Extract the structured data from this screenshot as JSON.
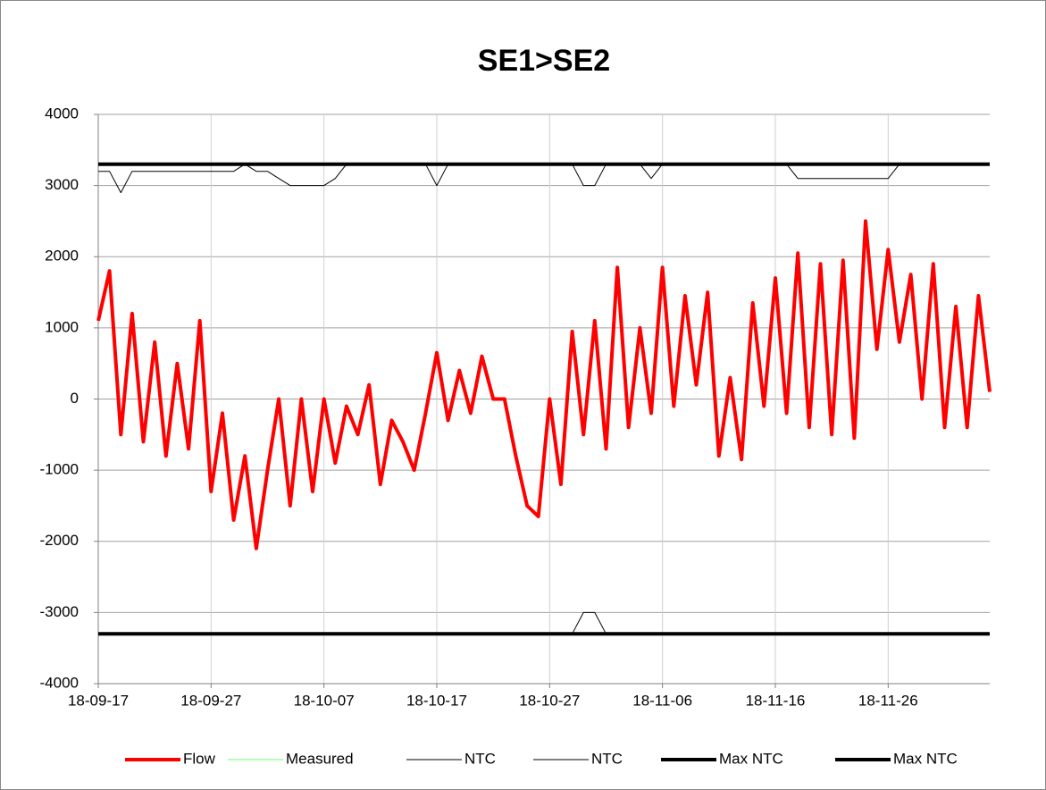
{
  "chart_data": {
    "type": "line",
    "title": "SE1>SE2",
    "x": [
      "18-09-17",
      "18-09-18",
      "18-09-19",
      "18-09-20",
      "18-09-21",
      "18-09-22",
      "18-09-23",
      "18-09-24",
      "18-09-25",
      "18-09-26",
      "18-09-27",
      "18-09-28",
      "18-09-29",
      "18-09-30",
      "18-10-01",
      "18-10-02",
      "18-10-03",
      "18-10-04",
      "18-10-05",
      "18-10-06",
      "18-10-07",
      "18-10-08",
      "18-10-09",
      "18-10-10",
      "18-10-11",
      "18-10-12",
      "18-10-13",
      "18-10-14",
      "18-10-15",
      "18-10-16",
      "18-10-17",
      "18-10-18",
      "18-10-19",
      "18-10-20",
      "18-10-21",
      "18-10-22",
      "18-10-23",
      "18-10-24",
      "18-10-25",
      "18-10-26",
      "18-10-27",
      "18-10-28",
      "18-10-29",
      "18-10-30",
      "18-10-31",
      "18-11-01",
      "18-11-02",
      "18-11-03",
      "18-11-04",
      "18-11-05",
      "18-11-06",
      "18-11-07",
      "18-11-08",
      "18-11-09",
      "18-11-10",
      "18-11-11",
      "18-11-12",
      "18-11-13",
      "18-11-14",
      "18-11-15",
      "18-11-16",
      "18-11-17",
      "18-11-18",
      "18-11-19",
      "18-11-20",
      "18-11-21",
      "18-11-22",
      "18-11-23",
      "18-11-24",
      "18-11-25",
      "18-11-26",
      "18-11-27",
      "18-11-28",
      "18-11-29",
      "18-11-30",
      "18-12-01",
      "18-12-02",
      "18-12-03",
      "18-12-04",
      "18-12-05"
    ],
    "series": [
      {
        "name": "Flow",
        "color": "#ff0000",
        "line_width": 4,
        "values": [
          1100,
          1800,
          -500,
          1200,
          -600,
          800,
          -800,
          500,
          -700,
          1100,
          -1300,
          -200,
          -1700,
          -800,
          -2100,
          -1000,
          0,
          -1500,
          0,
          -1300,
          0,
          -900,
          -100,
          -500,
          200,
          -1200,
          -300,
          -600,
          -1000,
          -200,
          650,
          -300,
          400,
          -200,
          600,
          0,
          0,
          -800,
          -1500,
          -1650,
          0,
          -1200,
          950,
          -500,
          1100,
          -700,
          1850,
          -400,
          1000,
          -200,
          1850,
          -100,
          1450,
          200,
          1500,
          -800,
          300,
          -850,
          1350,
          -100,
          1700,
          -200,
          2050,
          -400,
          1900,
          -500,
          1950,
          -550,
          2500,
          700,
          2100,
          800,
          1750,
          0,
          1900,
          -400,
          1300,
          -400,
          1450,
          100
        ]
      },
      {
        "name": "Measured",
        "color": "#66ff66",
        "line_width": 1,
        "values": [
          null,
          null,
          null,
          null,
          null,
          null,
          null,
          null,
          null,
          null,
          null,
          null,
          null,
          null,
          null,
          null,
          null,
          null,
          null,
          null,
          null,
          null,
          null,
          null,
          null,
          null,
          null,
          null,
          null,
          null,
          null,
          null,
          null,
          null,
          null,
          null,
          null,
          null,
          null,
          null,
          null,
          null,
          null,
          null,
          null,
          null,
          null,
          null,
          null,
          null,
          null,
          null,
          null,
          null,
          null,
          null,
          null,
          null,
          null,
          null,
          null,
          null,
          null,
          null,
          null,
          null,
          null,
          null,
          null,
          null,
          null,
          null,
          null,
          null,
          null,
          null,
          null,
          null,
          null,
          null
        ]
      },
      {
        "name": "NTC",
        "color": "#000000",
        "line_width": 1,
        "values": [
          3200,
          3200,
          2900,
          3200,
          3200,
          3200,
          3200,
          3200,
          3200,
          3200,
          3200,
          3200,
          3200,
          3300,
          3200,
          3200,
          3100,
          3000,
          3000,
          3000,
          3000,
          3100,
          3300,
          3300,
          3300,
          3300,
          3300,
          3300,
          3300,
          3300,
          3000,
          3300,
          3300,
          3300,
          3300,
          3300,
          3300,
          3300,
          3300,
          3300,
          3300,
          3300,
          3300,
          3000,
          3000,
          3300,
          3300,
          3300,
          3300,
          3100,
          3300,
          3300,
          3300,
          3300,
          3300,
          3300,
          3300,
          3300,
          3300,
          3300,
          3300,
          3300,
          3100,
          3100,
          3100,
          3100,
          3100,
          3100,
          3100,
          3100,
          3100,
          3300,
          3300,
          3300,
          3300,
          3300,
          3300,
          3300,
          3300,
          3300
        ]
      },
      {
        "name": "NTC",
        "color": "#000000",
        "line_width": 1,
        "values": [
          -3300,
          -3300,
          -3300,
          -3300,
          -3300,
          -3300,
          -3300,
          -3300,
          -3300,
          -3300,
          -3300,
          -3300,
          -3300,
          -3300,
          -3300,
          -3300,
          -3300,
          -3300,
          -3300,
          -3300,
          -3300,
          -3300,
          -3300,
          -3300,
          -3300,
          -3300,
          -3300,
          -3300,
          -3300,
          -3300,
          -3300,
          -3300,
          -3300,
          -3300,
          -3300,
          -3300,
          -3300,
          -3300,
          -3300,
          -3300,
          -3300,
          -3300,
          -3300,
          -3000,
          -3000,
          -3300,
          -3300,
          -3300,
          -3300,
          -3300,
          -3300,
          -3300,
          -3300,
          -3300,
          -3300,
          -3300,
          -3300,
          -3300,
          -3300,
          -3300,
          -3300,
          -3300,
          -3300,
          -3300,
          -3300,
          -3300,
          -3300,
          -3300,
          -3300,
          -3300,
          -3300,
          -3300,
          -3300,
          -3300,
          -3300,
          -3300,
          -3300,
          -3300,
          -3300,
          -3300
        ]
      },
      {
        "name": "Max NTC",
        "color": "#000000",
        "line_width": 4,
        "values": [
          3300,
          3300,
          3300,
          3300,
          3300,
          3300,
          3300,
          3300,
          3300,
          3300,
          3300,
          3300,
          3300,
          3300,
          3300,
          3300,
          3300,
          3300,
          3300,
          3300,
          3300,
          3300,
          3300,
          3300,
          3300,
          3300,
          3300,
          3300,
          3300,
          3300,
          3300,
          3300,
          3300,
          3300,
          3300,
          3300,
          3300,
          3300,
          3300,
          3300,
          3300,
          3300,
          3300,
          3300,
          3300,
          3300,
          3300,
          3300,
          3300,
          3300,
          3300,
          3300,
          3300,
          3300,
          3300,
          3300,
          3300,
          3300,
          3300,
          3300,
          3300,
          3300,
          3300,
          3300,
          3300,
          3300,
          3300,
          3300,
          3300,
          3300,
          3300,
          3300,
          3300,
          3300,
          3300,
          3300,
          3300,
          3300,
          3300,
          3300
        ]
      },
      {
        "name": "Max NTC",
        "color": "#000000",
        "line_width": 4,
        "values": [
          -3300,
          -3300,
          -3300,
          -3300,
          -3300,
          -3300,
          -3300,
          -3300,
          -3300,
          -3300,
          -3300,
          -3300,
          -3300,
          -3300,
          -3300,
          -3300,
          -3300,
          -3300,
          -3300,
          -3300,
          -3300,
          -3300,
          -3300,
          -3300,
          -3300,
          -3300,
          -3300,
          -3300,
          -3300,
          -3300,
          -3300,
          -3300,
          -3300,
          -3300,
          -3300,
          -3300,
          -3300,
          -3300,
          -3300,
          -3300,
          -3300,
          -3300,
          -3300,
          -3300,
          -3300,
          -3300,
          -3300,
          -3300,
          -3300,
          -3300,
          -3300,
          -3300,
          -3300,
          -3300,
          -3300,
          -3300,
          -3300,
          -3300,
          -3300,
          -3300,
          -3300,
          -3300,
          -3300,
          -3300,
          -3300,
          -3300,
          -3300,
          -3300,
          -3300,
          -3300,
          -3300,
          -3300,
          -3300,
          -3300,
          -3300,
          -3300,
          -3300,
          -3300,
          -3300,
          -3300
        ]
      }
    ],
    "xlim": [
      "18-09-17",
      "18-12-05"
    ],
    "xticks": [
      "18-09-17",
      "18-09-27",
      "18-10-07",
      "18-10-17",
      "18-10-27",
      "18-11-06",
      "18-11-16",
      "18-11-26"
    ],
    "ylim": [
      -4000,
      4000
    ],
    "yticks": [
      -4000,
      -3000,
      -2000,
      -1000,
      0,
      1000,
      2000,
      3000,
      4000
    ],
    "grid": true,
    "legend": "bottom"
  }
}
